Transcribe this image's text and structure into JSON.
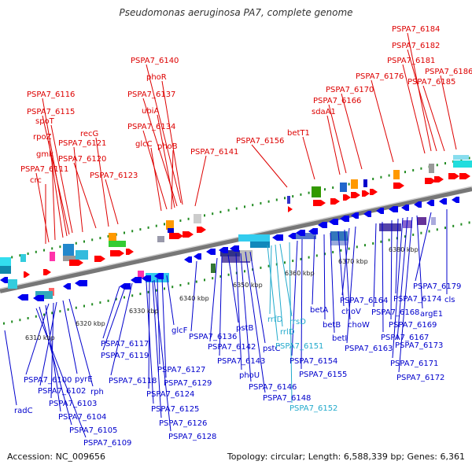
{
  "title": "Pseudomonas aeruginosa PA7, complete genome",
  "footer": {
    "accession": "Accession: NC_009656",
    "topology": "Topology: circular; Length: 6,588,339 bp; Genes: 6,361"
  },
  "colors": {
    "forward_label": "#dd0000",
    "reverse_label": "#0000cc",
    "rna_label": "#22aacc",
    "backbone": "#888888",
    "tick": "#228b22"
  },
  "kbp_labels": [
    "6310 kbp",
    "6320 kbp",
    "6330 kbp",
    "6340 kbp",
    "6350 kbp",
    "6360 kbp",
    "6370 kbp",
    "6380 kbp"
  ],
  "top_labels": [
    "PSPA7_6184",
    "PSPA7_6182",
    "PSPA7_6181",
    "PSPA7_6186",
    "PSPA7_6176",
    "PSPA7_6185",
    "PSPA7_6140",
    "phoR",
    "PSPA7_6137",
    "ubiA",
    "PSPA7_6134",
    "glcC",
    "phoB",
    "PSPA7_6141",
    "PSPA7_6116",
    "PSPA7_6115",
    "spoT",
    "rpoZ",
    "recG",
    "PSPA7_6121",
    "gmk",
    "PSPA7_6120",
    "PSPA7_6111",
    "crc",
    "PSPA7_6123",
    "PSPA7_6156",
    "betT1",
    "sdaA1",
    "PSPA7_6166",
    "PSPA7_6170"
  ],
  "bottom_labels": [
    "radC",
    "PSPA7_6100",
    "PSPA7_6102",
    "pyrE",
    "PSPA7_6103",
    "rph",
    "PSPA7_6104",
    "PSPA7_6105",
    "PSPA7_6109",
    "PSPA7_6119",
    "PSPA7_6117",
    "PSPA7_6118",
    "glcF",
    "PSPA7_6127",
    "PSPA7_6129",
    "PSPA7_6124",
    "PSPA7_6125",
    "PSPA7_6126",
    "PSPA7_6128",
    "PSPA7_6136",
    "PSPA7_6142",
    "pstB",
    "PSPA7_6143",
    "phoU",
    "pstC",
    "PSPA7_6146",
    "PSPA7_6148",
    "rrfD",
    "rrsD",
    "rrlD",
    "PSPA7_6151",
    "PSPA7_6152",
    "PSPA7_6154",
    "PSPA7_6155",
    "betA",
    "betB",
    "betI",
    "choV",
    "choW",
    "PSPA7_6164",
    "PSPA7_6163",
    "PSPA7_6168",
    "PSPA7_6167",
    "PSPA7_6169",
    "PSPA7_6174",
    "PSPA7_6179",
    "cls",
    "argE1",
    "PSPA7_6173",
    "PSPA7_6171",
    "PSPA7_6172"
  ],
  "rna_label_names": [
    "rrfD",
    "rrsD",
    "rrlD",
    "PSPA7_6151",
    "PSPA7_6152"
  ]
}
